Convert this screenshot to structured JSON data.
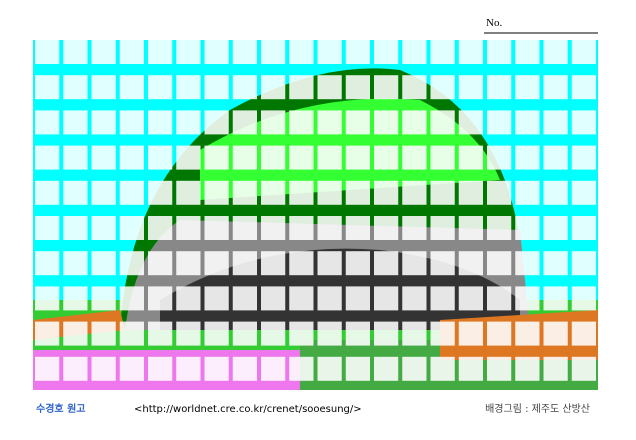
{
  "header": {
    "no_label": "No."
  },
  "footer": {
    "logo": "수경호 원고",
    "url": "<http://worldnet.cre.co.kr/crenet/sooesung/>",
    "credit": "배경그림 : 제주도 산방산"
  }
}
